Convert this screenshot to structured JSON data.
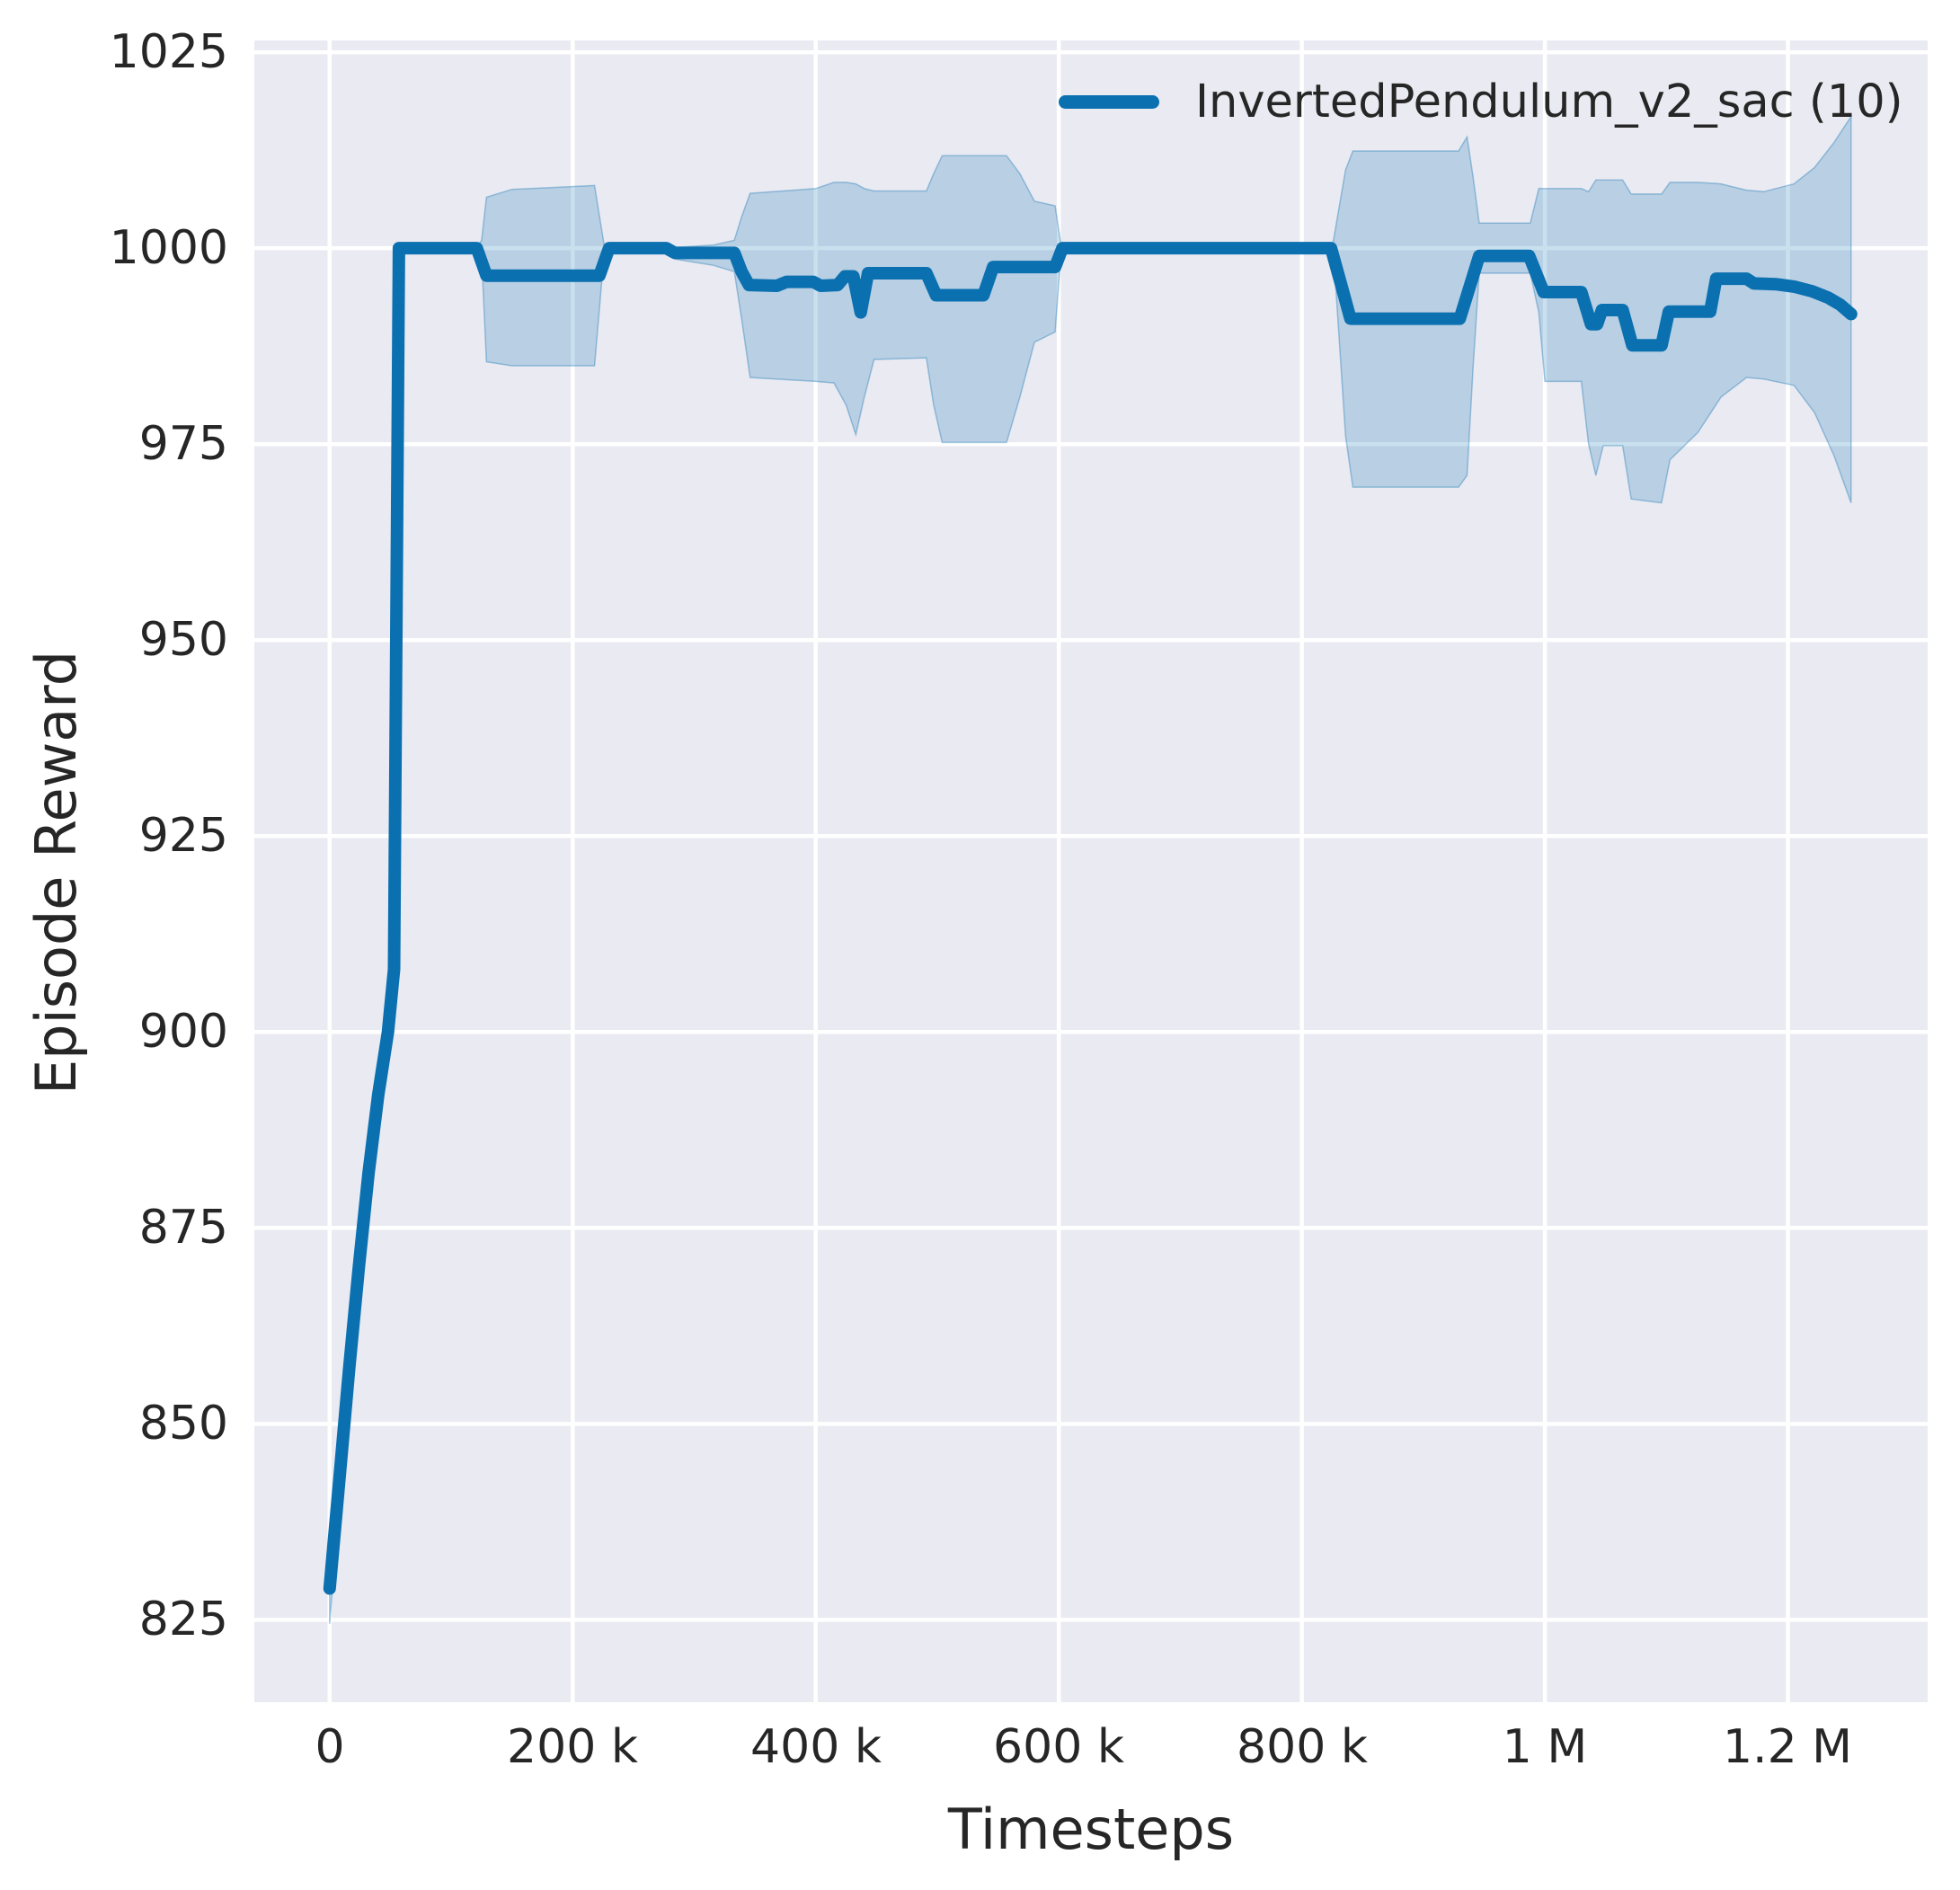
{
  "figure": {
    "background": "#ffffff"
  },
  "chart_data": {
    "type": "line",
    "title": "",
    "xlabel": "Timesteps",
    "ylabel": "Episode Reward",
    "grid": true,
    "legend_position": "upper right",
    "plot_background": "#eaeaf2",
    "grid_color": "#ffffff",
    "text_color": "#262626",
    "xlim": [
      -62000,
      1315000
    ],
    "ylim": [
      814.5,
      1026.5
    ],
    "x_ticks": [
      {
        "value": 0,
        "label": "0"
      },
      {
        "value": 200000,
        "label": "200 k"
      },
      {
        "value": 400000,
        "label": "400 k"
      },
      {
        "value": 600000,
        "label": "600 k"
      },
      {
        "value": 800000,
        "label": "800 k"
      },
      {
        "value": 1000000,
        "label": "1 M"
      },
      {
        "value": 1200000,
        "label": "1.2 M"
      }
    ],
    "y_ticks": [
      {
        "value": 825,
        "label": "825"
      },
      {
        "value": 850,
        "label": "850"
      },
      {
        "value": 875,
        "label": "875"
      },
      {
        "value": 900,
        "label": "900"
      },
      {
        "value": 925,
        "label": "925"
      },
      {
        "value": 950,
        "label": "950"
      },
      {
        "value": 975,
        "label": "975"
      },
      {
        "value": 1000,
        "label": "1000"
      },
      {
        "value": 1025,
        "label": "1025"
      }
    ],
    "series": [
      {
        "name": "InvertedPendulum_v2_sac (10)",
        "color": "#0b70b0",
        "line_width": 14,
        "band_opacity": 0.22,
        "points": [
          [
            0,
            829
          ],
          [
            8000,
            843
          ],
          [
            16000,
            857
          ],
          [
            24000,
            870
          ],
          [
            32000,
            882
          ],
          [
            40000,
            892
          ],
          [
            48000,
            900
          ],
          [
            53000,
            908
          ],
          [
            57000,
            1000
          ],
          [
            121000,
            1000
          ],
          [
            129000,
            996.5
          ],
          [
            222000,
            996.5
          ],
          [
            230000,
            1000
          ],
          [
            277000,
            1000
          ],
          [
            284000,
            999.4
          ],
          [
            333000,
            999.4
          ],
          [
            339000,
            997
          ],
          [
            345000,
            995.3
          ],
          [
            368000,
            995.2
          ],
          [
            376000,
            995.7
          ],
          [
            398000,
            995.7
          ],
          [
            404000,
            995.2
          ],
          [
            418000,
            995.3
          ],
          [
            424000,
            996.4
          ],
          [
            431000,
            996.4
          ],
          [
            437000,
            991.8
          ],
          [
            443000,
            996.8
          ],
          [
            491000,
            996.8
          ],
          [
            499000,
            994.0
          ],
          [
            538000,
            994.0
          ],
          [
            546000,
            997.6
          ],
          [
            597000,
            997.6
          ],
          [
            603000,
            1000
          ],
          [
            824000,
            1000
          ],
          [
            833000,
            995
          ],
          [
            840000,
            991
          ],
          [
            930000,
            991
          ],
          [
            938000,
            995
          ],
          [
            946000,
            999
          ],
          [
            987000,
            999
          ],
          [
            999000,
            994.4
          ],
          [
            1030000,
            994.4
          ],
          [
            1038000,
            990.3
          ],
          [
            1043000,
            990.3
          ],
          [
            1047000,
            992.1
          ],
          [
            1064000,
            992.1
          ],
          [
            1072000,
            987.6
          ],
          [
            1096000,
            987.6
          ],
          [
            1102000,
            991.9
          ],
          [
            1136000,
            991.9
          ],
          [
            1141000,
            996.1
          ],
          [
            1166000,
            996.1
          ],
          [
            1172000,
            995.5
          ],
          [
            1190000,
            995.4
          ],
          [
            1205000,
            995.1
          ],
          [
            1220000,
            994.5
          ],
          [
            1233000,
            993.7
          ],
          [
            1243000,
            992.8
          ],
          [
            1252000,
            991.6
          ]
        ],
        "band": [
          [
            0,
            824.5,
            831.5
          ],
          [
            16000,
            855,
            859
          ],
          [
            32000,
            880.5,
            883.5
          ],
          [
            48000,
            899,
            901
          ],
          [
            53000,
            907,
            909
          ],
          [
            57000,
            999.6,
            1000.2
          ],
          [
            121000,
            999.6,
            1000.2
          ],
          [
            125000,
            999,
            1001
          ],
          [
            129000,
            985.5,
            1006.5
          ],
          [
            150000,
            985,
            1007.5
          ],
          [
            218000,
            985,
            1008
          ],
          [
            226000,
            999.5,
            1000.3
          ],
          [
            277000,
            999.6,
            1000.2
          ],
          [
            284000,
            998.6,
            1000.1
          ],
          [
            316000,
            997.8,
            1000.4
          ],
          [
            333000,
            997,
            1001
          ],
          [
            339000,
            991,
            1004
          ],
          [
            346000,
            983.5,
            1007
          ],
          [
            400000,
            983,
            1007.6
          ],
          [
            415000,
            982.8,
            1008.4
          ],
          [
            425000,
            980,
            1008.4
          ],
          [
            433000,
            976.2,
            1008.2
          ],
          [
            440000,
            981,
            1007.6
          ],
          [
            448000,
            985.8,
            1007.3
          ],
          [
            491000,
            986,
            1007.3
          ],
          [
            497000,
            980,
            1009.5
          ],
          [
            504000,
            975.2,
            1011.8
          ],
          [
            557000,
            975.2,
            1011.8
          ],
          [
            568000,
            981,
            1009.5
          ],
          [
            580000,
            988,
            1006
          ],
          [
            597000,
            989.3,
            1005.4
          ],
          [
            602000,
            999.7,
            1000.2
          ],
          [
            824000,
            999.8,
            1000.1
          ],
          [
            826000,
            999.5,
            1001
          ],
          [
            836000,
            976,
            1010
          ],
          [
            842000,
            969.5,
            1012.4
          ],
          [
            929000,
            969.5,
            1012.4
          ],
          [
            936000,
            971,
            1014.2
          ],
          [
            941000,
            985,
            1009
          ],
          [
            946000,
            996.8,
            1003.2
          ],
          [
            988000,
            996.8,
            1003.2
          ],
          [
            995000,
            991.8,
            1007.6
          ],
          [
            1000000,
            983,
            1007.6
          ],
          [
            1030000,
            983,
            1007.6
          ],
          [
            1036000,
            975,
            1007.2
          ],
          [
            1042000,
            971,
            1008.7
          ],
          [
            1048000,
            974.8,
            1008.7
          ],
          [
            1064000,
            974.8,
            1008.7
          ],
          [
            1071000,
            968,
            1006.9
          ],
          [
            1096000,
            967.5,
            1006.9
          ],
          [
            1103000,
            973,
            1008.4
          ],
          [
            1126000,
            976.5,
            1008.4
          ],
          [
            1145000,
            981,
            1008.2
          ],
          [
            1166000,
            983.5,
            1007.4
          ],
          [
            1180000,
            983.3,
            1007.2
          ],
          [
            1205000,
            982.5,
            1008.2
          ],
          [
            1222000,
            979,
            1010.3
          ],
          [
            1238000,
            973.5,
            1013.5
          ],
          [
            1252000,
            967.5,
            1016.8
          ]
        ]
      }
    ]
  }
}
